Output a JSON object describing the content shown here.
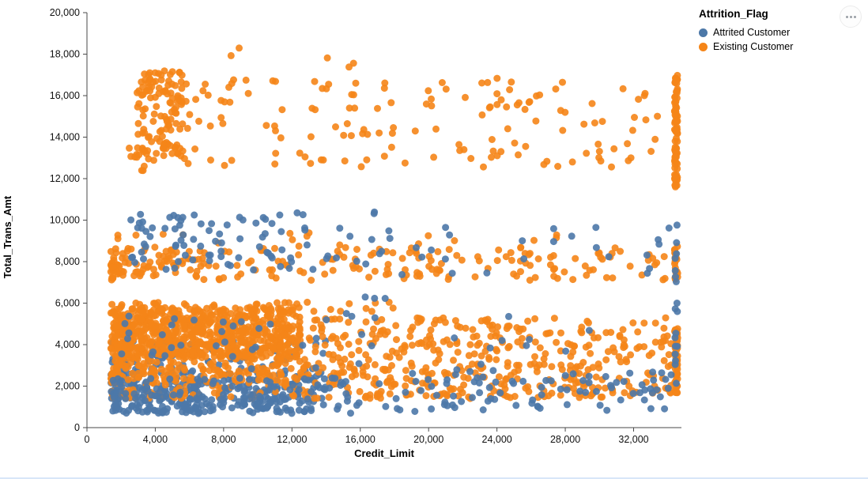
{
  "legend": {
    "title": "Attrition_Flag",
    "items": [
      {
        "label": "Attrited Customer",
        "color": "#4c78a8"
      },
      {
        "label": "Existing Customer",
        "color": "#f58518"
      }
    ]
  },
  "header": {
    "more_options_icon": "ellipsis"
  },
  "chart_data": {
    "type": "scatter",
    "title": "",
    "xlabel": "Credit_Limit",
    "ylabel": "Total_Trans_Amt",
    "xlim": [
      0,
      34800
    ],
    "ylim": [
      0,
      20000
    ],
    "x_data_range": [
      1438,
      34516
    ],
    "xticks": [
      0,
      4000,
      8000,
      12000,
      16000,
      20000,
      24000,
      28000,
      32000
    ],
    "yticks": [
      0,
      2000,
      4000,
      6000,
      8000,
      10000,
      12000,
      14000,
      16000,
      18000,
      20000
    ],
    "grid": false,
    "legend_position": "top-right",
    "marker": {
      "shape": "circle",
      "radius": 4.5,
      "opacity": 0.9
    },
    "seed": 1337,
    "series": [
      {
        "name": "Attrited Customer",
        "color": "#4c78a8",
        "clusters": [
          {
            "n": 220,
            "x": [
              1400,
              14000
            ],
            "y": [
              700,
              2600
            ],
            "xpow": 1.2,
            "layer": 0
          },
          {
            "n": 90,
            "x": [
              1400,
              14000
            ],
            "y": [
              2600,
              4200
            ],
            "xpow": 1.2,
            "layer": 0
          },
          {
            "n": 160,
            "x": [
              1400,
              16000
            ],
            "y": [
              680,
              2400
            ],
            "xpow": 1.3,
            "layer": 1
          },
          {
            "n": 90,
            "x": [
              16000,
              34200
            ],
            "y": [
              750,
              2800
            ],
            "xpow": 1.0,
            "layer": 1
          },
          {
            "n": 45,
            "x": [
              2000,
              30000
            ],
            "y": [
              2800,
              5600
            ],
            "xpow": 1.4,
            "layer": 1
          },
          {
            "n": 80,
            "x": [
              2500,
              13500
            ],
            "y": [
              7600,
              10400
            ],
            "xpow": 1.2,
            "layer": 1
          },
          {
            "n": 35,
            "x": [
              13500,
              34200
            ],
            "y": [
              7200,
              9900
            ],
            "xpow": 1.0,
            "layer": 1
          },
          {
            "n": 18,
            "x": [
              34420,
              34560
            ],
            "y": [
              1800,
              9900
            ],
            "xpow": 1.0,
            "layer": 1
          },
          {
            "n": 3,
            "x": [
              14000,
              17500
            ],
            "y": [
              6100,
              6400
            ],
            "xpow": 1.0,
            "layer": 1
          },
          {
            "n": 2,
            "x": [
              15500,
              17500
            ],
            "y": [
              10200,
              10480
            ],
            "xpow": 1.0,
            "layer": 1
          }
        ]
      },
      {
        "name": "Existing Customer",
        "color": "#f58518",
        "clusters": [
          {
            "n": 600,
            "x": [
              1400,
              12500
            ],
            "y": [
              3300,
              5800
            ],
            "xpow": 1.1,
            "layer": 0
          },
          {
            "n": 450,
            "x": [
              1600,
              34200
            ],
            "y": [
              2900,
              5300
            ],
            "xpow": 1.4,
            "layer": 0
          },
          {
            "n": 400,
            "x": [
              1400,
              34200
            ],
            "y": [
              1400,
              3000
            ],
            "xpow": 1.5,
            "layer": 0
          },
          {
            "n": 40,
            "x": [
              1400,
              18000
            ],
            "y": [
              5600,
              6050
            ],
            "xpow": 1.2,
            "layer": 0
          },
          {
            "n": 230,
            "x": [
              1400,
              34200
            ],
            "y": [
              7100,
              8700
            ],
            "xpow": 1.7,
            "layer": 0
          },
          {
            "n": 18,
            "x": [
              1600,
              30000
            ],
            "y": [
              8700,
              9400
            ],
            "xpow": 1.3,
            "layer": 0
          },
          {
            "n": 120,
            "x": [
              2900,
              5600
            ],
            "y": [
              12800,
              17300
            ],
            "xpow": 1.0,
            "layer": 0
          },
          {
            "n": 150,
            "x": [
              5600,
              34000
            ],
            "y": [
              12500,
              16900
            ],
            "xpow": 1.15,
            "layer": 0
          },
          {
            "n": 10,
            "x": [
              2300,
              3600
            ],
            "y": [
              12200,
              13600
            ],
            "xpow": 1.0,
            "layer": 0
          },
          {
            "n": 5,
            "x": [
              6000,
              17000
            ],
            "y": [
              17300,
              18550
            ],
            "xpow": 1.0,
            "layer": 0
          },
          {
            "n": 85,
            "x": [
              34400,
              34580
            ],
            "y": [
              11600,
              17000
            ],
            "xpow": 1.0,
            "layer": 0
          },
          {
            "n": 22,
            "x": [
              34400,
              34580
            ],
            "y": [
              7100,
              8800
            ],
            "xpow": 1.0,
            "layer": 0
          },
          {
            "n": 55,
            "x": [
              34400,
              34580
            ],
            "y": [
              1500,
              4800
            ],
            "xpow": 1.0,
            "layer": 0
          }
        ]
      }
    ]
  }
}
